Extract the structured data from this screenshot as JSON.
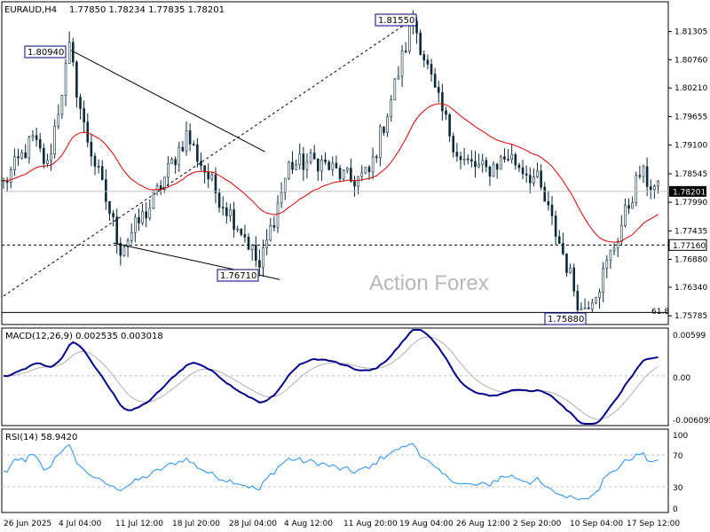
{
  "header": {
    "symbol": "EURAUD,H4",
    "ohlc": "1.77850 1.78234 1.77835 1.78201"
  },
  "watermark": "Action Forex",
  "chart_data": {
    "type": "candlestick",
    "main": {
      "yticks": [
        "1.81305",
        "1.80760",
        "1.80210",
        "1.79655",
        "1.79100",
        "1.78545",
        "1.77990",
        "1.77435",
        "1.76880",
        "1.76340",
        "1.75785"
      ],
      "ylim": [
        1.7565,
        1.8185
      ],
      "current_price": "1.78201",
      "level_price": "1.77160",
      "fib_label": "61.8",
      "annotations": [
        "1.80940",
        "1.81550",
        "1.76710",
        "1.75880"
      ],
      "anchors": [
        {
          "bar": 0,
          "price": 1.7835
        },
        {
          "bar": 8,
          "price": 1.792
        },
        {
          "bar": 12,
          "price": 1.7868
        },
        {
          "bar": 18,
          "price": 1.8094
        },
        {
          "bar": 22,
          "price": 1.7945
        },
        {
          "bar": 32,
          "price": 1.771
        },
        {
          "bar": 40,
          "price": 1.779
        },
        {
          "bar": 50,
          "price": 1.793
        },
        {
          "bar": 58,
          "price": 1.782
        },
        {
          "bar": 66,
          "price": 1.7735
        },
        {
          "bar": 70,
          "price": 1.7671
        },
        {
          "bar": 78,
          "price": 1.787
        },
        {
          "bar": 86,
          "price": 1.788
        },
        {
          "bar": 95,
          "price": 1.784
        },
        {
          "bar": 100,
          "price": 1.7855
        },
        {
          "bar": 106,
          "price": 1.8
        },
        {
          "bar": 112,
          "price": 1.8155
        },
        {
          "bar": 118,
          "price": 1.801
        },
        {
          "bar": 125,
          "price": 1.788
        },
        {
          "bar": 132,
          "price": 1.786
        },
        {
          "bar": 138,
          "price": 1.789
        },
        {
          "bar": 146,
          "price": 1.784
        },
        {
          "bar": 153,
          "price": 1.77
        },
        {
          "bar": 158,
          "price": 1.7588
        },
        {
          "bar": 163,
          "price": 1.764
        },
        {
          "bar": 168,
          "price": 1.7735
        },
        {
          "bar": 174,
          "price": 1.7855
        },
        {
          "bar": 179,
          "price": 1.782
        }
      ]
    },
    "macd": {
      "title": "MACD(12,26,9) 0.002535 0.003018",
      "yticks": [
        "0.00599",
        "0.00",
        "-0.006095"
      ],
      "ylim": [
        -0.0075,
        0.0072
      ]
    },
    "rsi": {
      "title": "RSI(14) 58.9420",
      "yticks": [
        "100",
        "70",
        "30",
        "0"
      ],
      "levels": [
        70,
        30
      ]
    },
    "xticks": [
      "26 Jun 2025",
      "4 Jul 04:00",
      "11 Jul 12:00",
      "18 Jul 20:00",
      "28 Jul 04:00",
      "4 Aug 12:00",
      "11 Aug 20:00",
      "19 Aug 04:00",
      "26 Aug 12:00",
      "2 Sep 20:00",
      "10 Sep 04:00",
      "17 Sep 12:00"
    ]
  }
}
